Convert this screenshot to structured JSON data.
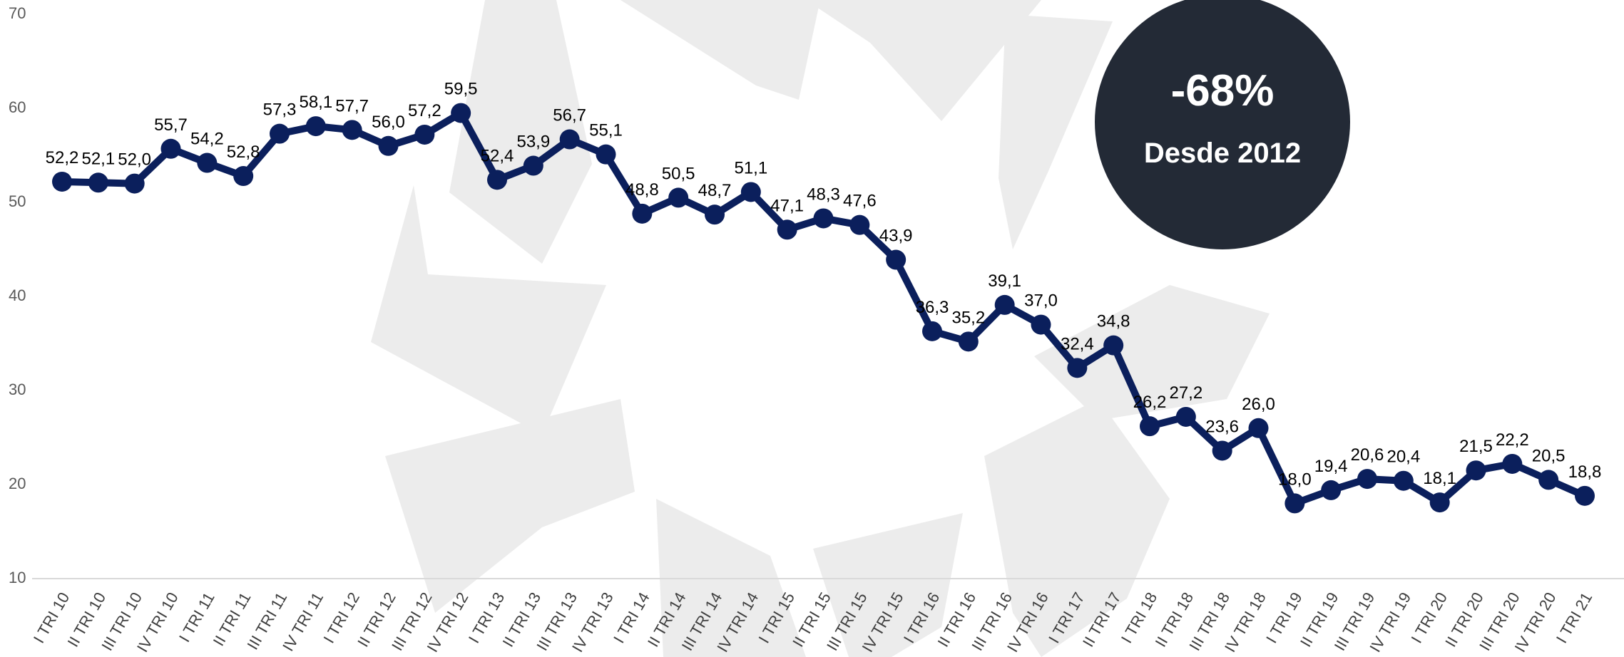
{
  "chart_data": {
    "type": "line",
    "categories": [
      "I TRI 10",
      "II TRI 10",
      "III TRI 10",
      "IV TRI 10",
      "I TRI 11",
      "II TRI 11",
      "III TRI 11",
      "IV TRI 11",
      "I TRI 12",
      "II TRI 12",
      "III TRI 12",
      "IV TRI 12",
      "I TRI 13",
      "II TRI 13",
      "III TRI 13",
      "IV TRI 13",
      "I TRI 14",
      "II TRI 14",
      "III TRI 14",
      "IV TRI 14",
      "I TRI 15",
      "II TRI 15",
      "III TRI 15",
      "IV TRI 15",
      "I TRI 16",
      "II TRI 16",
      "III TRI 16",
      "IV TRI 16",
      "I TRI 17",
      "II TRI 17",
      "I TRI 18",
      "II TRI 18",
      "III TRI 18",
      "IV TRI 18",
      "I TRI 19",
      "II TRI 19",
      "III TRI 19",
      "IV TRI 19",
      "I TRI 20",
      "II TRI 20",
      "III TRI 20",
      "IV TRI 20",
      "I TRI 21"
    ],
    "values": [
      52.2,
      52.1,
      52.0,
      55.7,
      54.2,
      52.8,
      57.3,
      58.1,
      57.7,
      56.0,
      57.2,
      59.5,
      52.4,
      53.9,
      56.7,
      55.1,
      48.8,
      50.5,
      48.7,
      51.1,
      47.1,
      48.3,
      47.6,
      43.9,
      36.3,
      35.2,
      39.1,
      37.0,
      32.4,
      34.8,
      26.2,
      27.2,
      23.6,
      26.0,
      18.0,
      19.4,
      20.6,
      20.4,
      18.1,
      21.5,
      22.2,
      20.5,
      18.8
    ],
    "value_labels": [
      "52,2",
      "52,1",
      "52,0",
      "55,7",
      "54,2",
      "52,8",
      "57,3",
      "58,1",
      "57,7",
      "56,0",
      "57,2",
      "59,5",
      "52,4",
      "53,9",
      "56,7",
      "55,1",
      "48,8",
      "50,5",
      "48,7",
      "51,1",
      "47,1",
      "48,3",
      "47,6",
      "43,9",
      "36,3",
      "35,2",
      "39,1",
      "37,0",
      "32,4",
      "34,8",
      "26,2",
      "27,2",
      "23,6",
      "26,0",
      "18,0",
      "19,4",
      "20,6",
      "20,4",
      "18,1",
      "21,5",
      "22,2",
      "20,5",
      "18,8"
    ],
    "color": "#0b1f5c",
    "ylim": [
      10,
      70
    ],
    "yticks": [
      10,
      20,
      30,
      40,
      50,
      60,
      70
    ],
    "grid": false,
    "annotation": {
      "value": "-68%",
      "text": "Desde 2012"
    }
  }
}
